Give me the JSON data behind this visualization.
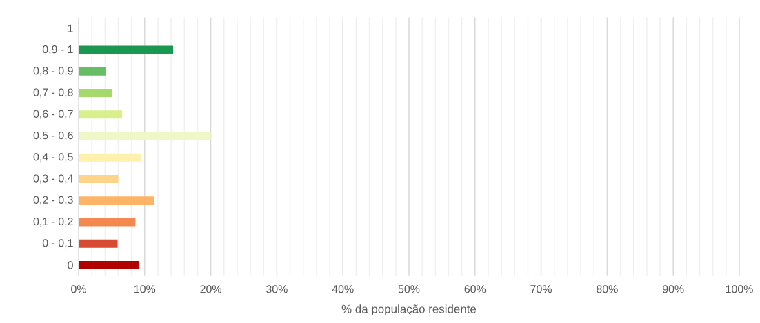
{
  "chart_data": {
    "type": "bar",
    "orientation": "horizontal",
    "xlabel": "% da população residente",
    "categories": [
      "1",
      "0,9 - 1",
      "0,8 - 0,9",
      "0,7 - 0,8",
      "0,6 - 0,7",
      "0,5 - 0,6",
      "0,4 - 0,5",
      "0,3 - 0,4",
      "0,2 - 0,3",
      "0,1 - 0,2",
      "0 - 0,1",
      "0"
    ],
    "values": [
      null,
      14.3,
      4.1,
      5.1,
      6.6,
      20.0,
      9.4,
      6.0,
      11.4,
      8.6,
      5.9,
      9.2
    ],
    "colors": [
      "#ffffff",
      "#1a9850",
      "#66bd63",
      "#a6d96a",
      "#d9ef8b",
      "#eff7c9",
      "#fff1ab",
      "#fed38a",
      "#fdb466",
      "#f38851",
      "#d94a33",
      "#b00000"
    ],
    "xlim": [
      0,
      100
    ],
    "xticks": [
      {
        "value": 0,
        "label": "0%"
      },
      {
        "value": 2,
        "label": null
      },
      {
        "value": 4,
        "label": null
      },
      {
        "value": 6,
        "label": null
      },
      {
        "value": 8,
        "label": null
      },
      {
        "value": 10,
        "label": "10%"
      },
      {
        "value": 12,
        "label": null
      },
      {
        "value": 14,
        "label": null
      },
      {
        "value": 16,
        "label": null
      },
      {
        "value": 18,
        "label": null
      },
      {
        "value": 20,
        "label": "20%"
      },
      {
        "value": 22,
        "label": null
      },
      {
        "value": 24,
        "label": null
      },
      {
        "value": 26,
        "label": null
      },
      {
        "value": 28,
        "label": null
      },
      {
        "value": 30,
        "label": "30%"
      },
      {
        "value": 32,
        "label": null
      },
      {
        "value": 34,
        "label": null
      },
      {
        "value": 36,
        "label": null
      },
      {
        "value": 38,
        "label": null
      },
      {
        "value": 40,
        "label": "40%"
      },
      {
        "value": 42,
        "label": null
      },
      {
        "value": 44,
        "label": null
      },
      {
        "value": 46,
        "label": null
      },
      {
        "value": 48,
        "label": null
      },
      {
        "value": 50,
        "label": "50%"
      },
      {
        "value": 52,
        "label": null
      },
      {
        "value": 54,
        "label": null
      },
      {
        "value": 56,
        "label": null
      },
      {
        "value": 58,
        "label": null
      },
      {
        "value": 60,
        "label": "60%"
      },
      {
        "value": 62,
        "label": null
      },
      {
        "value": 64,
        "label": null
      },
      {
        "value": 66,
        "label": null
      },
      {
        "value": 68,
        "label": null
      },
      {
        "value": 70,
        "label": "70%"
      },
      {
        "value": 72,
        "label": null
      },
      {
        "value": 74,
        "label": null
      },
      {
        "value": 76,
        "label": null
      },
      {
        "value": 78,
        "label": null
      },
      {
        "value": 80,
        "label": "80%"
      },
      {
        "value": 82,
        "label": null
      },
      {
        "value": 84,
        "label": null
      },
      {
        "value": 86,
        "label": null
      },
      {
        "value": 88,
        "label": null
      },
      {
        "value": 90,
        "label": "90%"
      },
      {
        "value": 92,
        "label": null
      },
      {
        "value": 94,
        "label": null
      },
      {
        "value": 96,
        "label": null
      },
      {
        "value": 98,
        "label": null
      },
      {
        "value": 100,
        "label": "100%"
      }
    ],
    "grid": "x"
  }
}
